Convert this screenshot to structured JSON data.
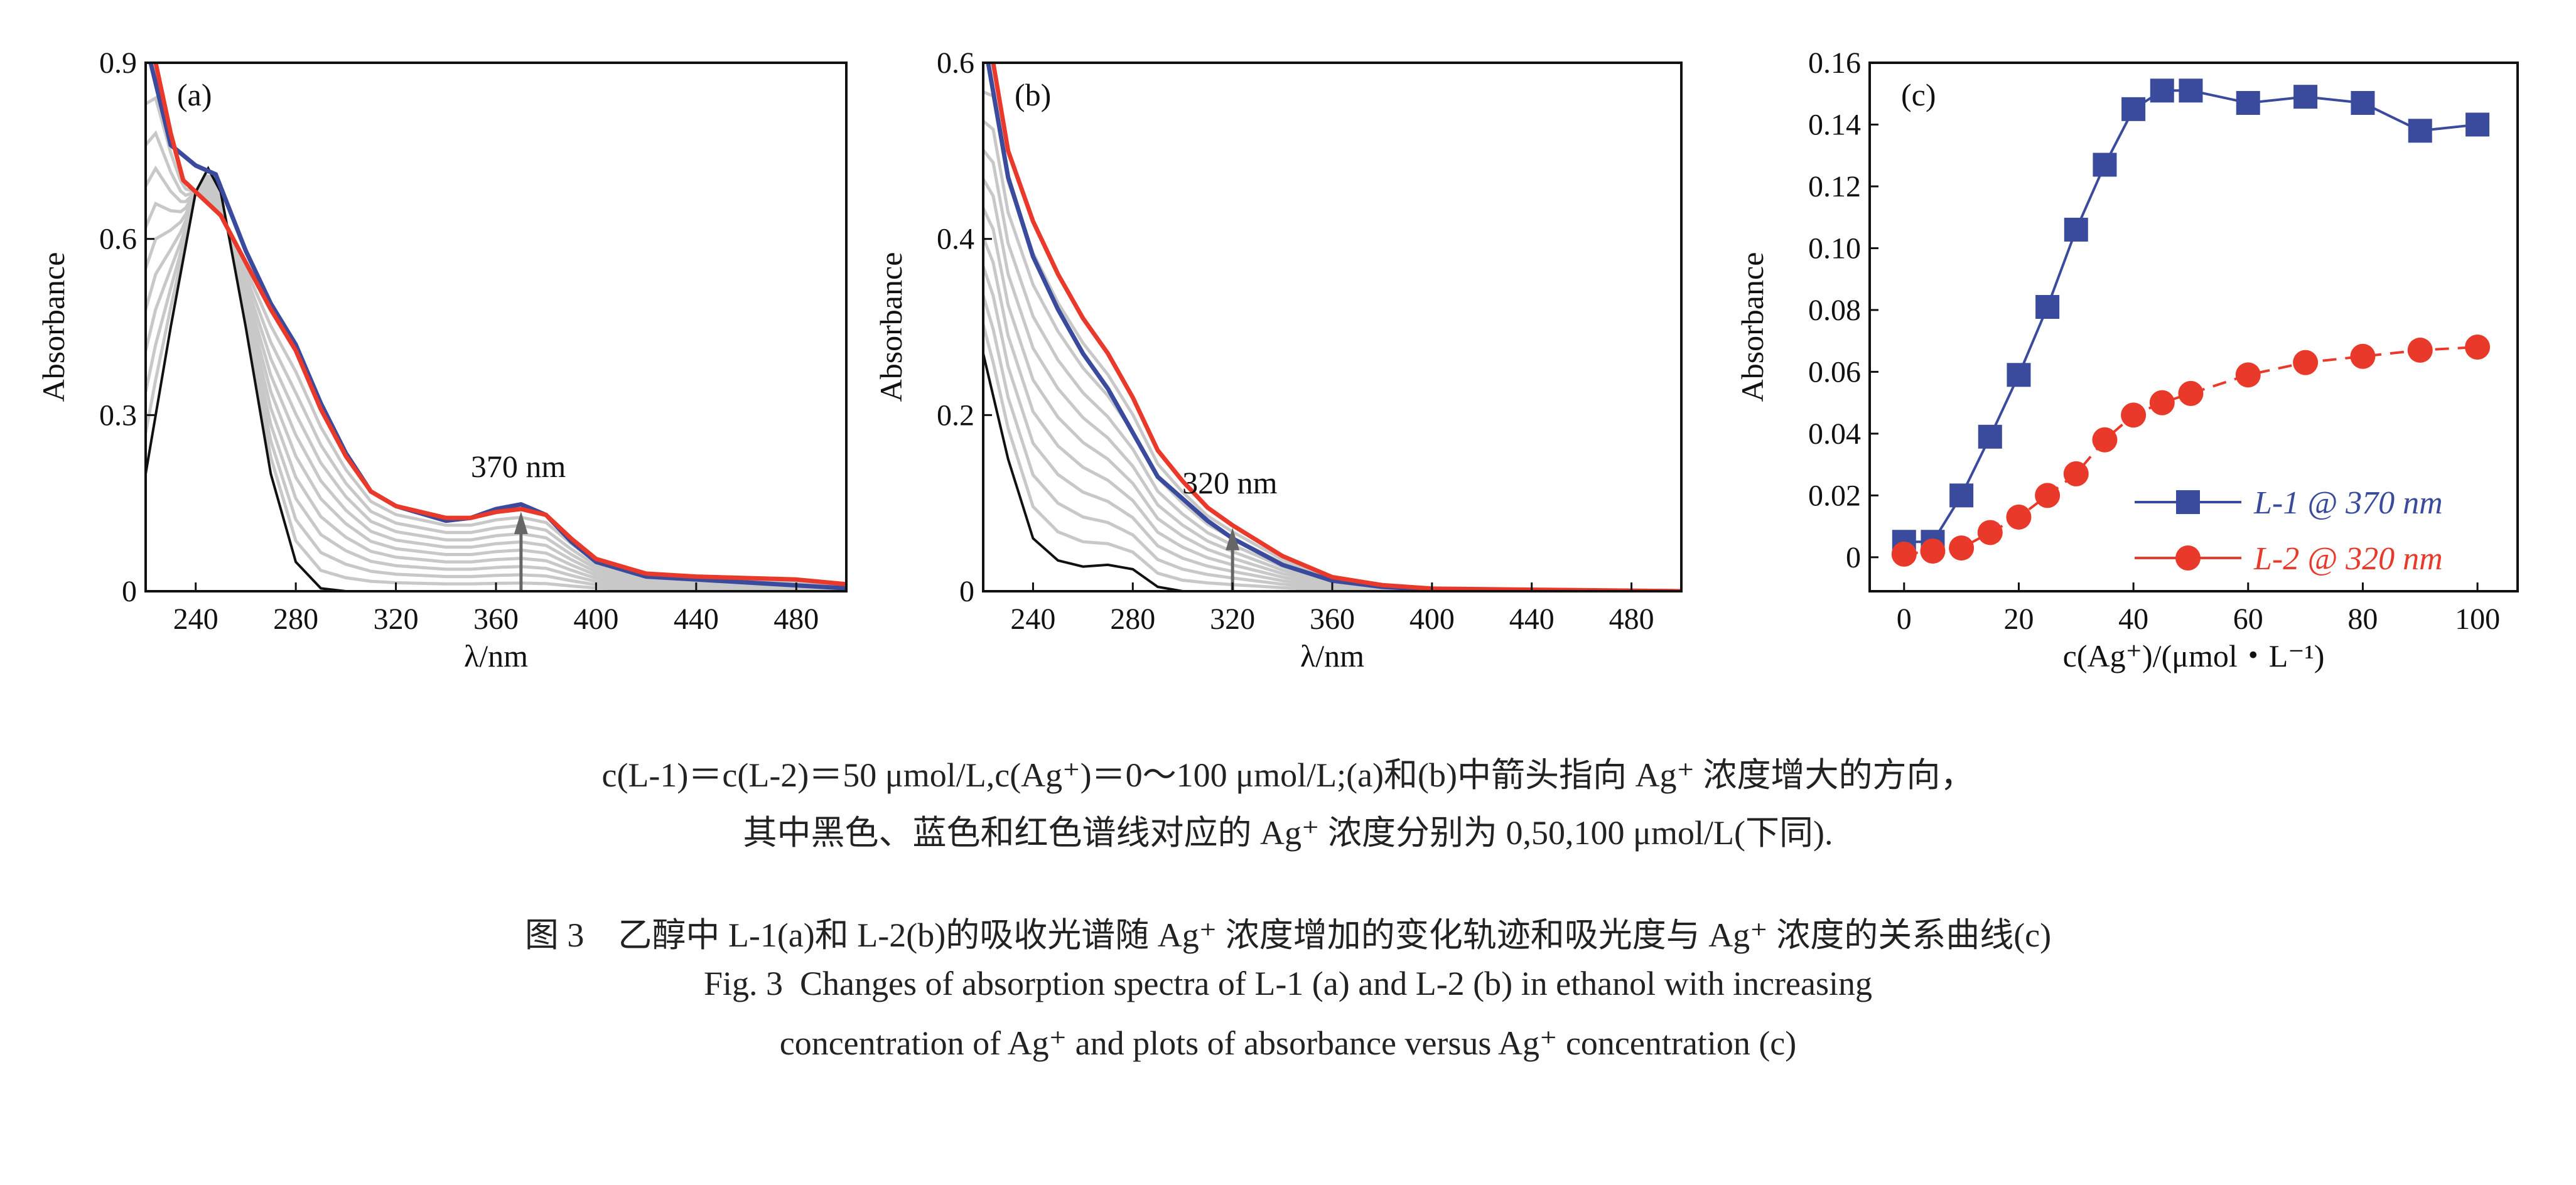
{
  "captions": {
    "note_line1": "c(L-1)＝c(L-2)＝50 μmol/L,c(Ag⁺)＝0～100 μmol/L;(a)和(b)中箭头指向 Ag⁺ 浓度增大的方向，",
    "note_line2": "其中黑色、蓝色和红色谱线对应的 Ag⁺ 浓度分别为 0,50,100 μmol/L(下同).",
    "title_cn": "图 3　乙醇中 L-1(a)和 L-2(b)的吸收光谱随 Ag⁺ 浓度增加的变化轨迹和吸光度与 Ag⁺ 浓度的关系曲线(c)",
    "title_en_line1": "Fig. 3  Changes of absorption spectra of L-1 (a) and L-2 (b) in ethanol with increasing",
    "title_en_line2": "concentration of Ag⁺ and plots of absorbance versus Ag⁺ concentration (c)"
  },
  "chart_data": [
    {
      "type": "line",
      "panel_label": "(a)",
      "xlabel": "λ/nm",
      "ylabel": "Absorbance",
      "xlim": [
        220,
        500
      ],
      "ylim": [
        0,
        0.9
      ],
      "xticks": [
        240,
        280,
        320,
        360,
        400,
        440,
        480
      ],
      "yticks": [
        0,
        0.3,
        0.6,
        0.9
      ],
      "ytick_labels": [
        "0",
        "0.3",
        "0.6",
        "0.9"
      ],
      "annotation": "370 nm",
      "arrow_at": 370,
      "grey_curve_count": 9,
      "colors": {
        "black": "#111111",
        "blue": "#3a4a9c",
        "red": "#e8392a",
        "grey": "#c8c8c8"
      },
      "series": [
        {
          "color": "black",
          "x": [
            220,
            230,
            240,
            245,
            250,
            260,
            270,
            280,
            290,
            300,
            500
          ],
          "y": [
            0.2,
            0.45,
            0.68,
            0.72,
            0.68,
            0.45,
            0.2,
            0.05,
            0.005,
            0,
            0
          ]
        },
        {
          "color": "blue",
          "x": [
            222,
            230,
            240,
            248,
            260,
            270,
            280,
            290,
            300,
            310,
            320,
            340,
            350,
            360,
            370,
            380,
            390,
            400,
            420,
            440,
            480,
            500
          ],
          "y": [
            0.9,
            0.76,
            0.725,
            0.71,
            0.58,
            0.49,
            0.42,
            0.32,
            0.235,
            0.17,
            0.145,
            0.12,
            0.125,
            0.14,
            0.148,
            0.13,
            0.085,
            0.05,
            0.025,
            0.02,
            0.01,
            0.005
          ]
        },
        {
          "color": "red",
          "x": [
            224,
            230,
            235,
            240,
            250,
            260,
            270,
            280,
            290,
            300,
            310,
            320,
            340,
            350,
            360,
            370,
            380,
            390,
            400,
            420,
            440,
            480,
            500
          ],
          "y": [
            0.9,
            0.78,
            0.7,
            0.68,
            0.64,
            0.56,
            0.48,
            0.41,
            0.31,
            0.23,
            0.17,
            0.145,
            0.125,
            0.125,
            0.135,
            0.14,
            0.13,
            0.09,
            0.055,
            0.03,
            0.025,
            0.02,
            0.012
          ]
        }
      ]
    },
    {
      "type": "line",
      "panel_label": "(b)",
      "xlabel": "λ/nm",
      "ylabel": "Absorbance",
      "xlim": [
        220,
        500
      ],
      "ylim": [
        0,
        0.6
      ],
      "xticks": [
        240,
        280,
        320,
        360,
        400,
        440,
        480
      ],
      "yticks": [
        0,
        0.2,
        0.4,
        0.6
      ],
      "ytick_labels": [
        "0",
        "0.2",
        "0.4",
        "0.6"
      ],
      "annotation": "320 nm",
      "arrow_at": 320,
      "grey_curve_count": 9,
      "colors": {
        "black": "#111111",
        "blue": "#3a4a9c",
        "red": "#e8392a",
        "grey": "#c8c8c8"
      },
      "series": [
        {
          "color": "black",
          "x": [
            220,
            230,
            240,
            250,
            260,
            270,
            280,
            290,
            300,
            500
          ],
          "y": [
            0.27,
            0.15,
            0.06,
            0.035,
            0.028,
            0.03,
            0.025,
            0.005,
            0,
            0
          ]
        },
        {
          "color": "blue",
          "x": [
            222,
            230,
            240,
            250,
            260,
            270,
            280,
            290,
            300,
            310,
            320,
            340,
            360,
            380,
            400,
            500
          ],
          "y": [
            0.6,
            0.47,
            0.38,
            0.32,
            0.27,
            0.23,
            0.18,
            0.13,
            0.105,
            0.08,
            0.06,
            0.03,
            0.012,
            0.005,
            0.002,
            0
          ]
        },
        {
          "color": "red",
          "x": [
            224,
            230,
            240,
            250,
            260,
            270,
            280,
            290,
            300,
            310,
            320,
            340,
            360,
            380,
            400,
            500
          ],
          "y": [
            0.6,
            0.5,
            0.42,
            0.36,
            0.31,
            0.27,
            0.22,
            0.16,
            0.125,
            0.095,
            0.075,
            0.04,
            0.016,
            0.007,
            0.003,
            0
          ]
        }
      ]
    },
    {
      "type": "scatter",
      "panel_label": "(c)",
      "xlabel": "c(Ag⁺)/(μmol・L⁻¹)",
      "ylabel": "Absorbance",
      "xlim": [
        -6,
        107
      ],
      "ylim": [
        -0.011,
        0.16
      ],
      "xticks": [
        0,
        20,
        40,
        60,
        80,
        100
      ],
      "yticks": [
        0,
        0.02,
        0.04,
        0.06,
        0.08,
        0.1,
        0.12,
        0.14,
        0.16
      ],
      "ytick_labels": [
        "0",
        "0.02",
        "0.04",
        "0.06",
        "0.08",
        "0.10",
        "0.12",
        "0.14",
        "0.16"
      ],
      "legend_position": "bottom-right",
      "x": [
        0,
        5,
        10,
        15,
        20,
        25,
        30,
        35,
        40,
        45,
        50,
        60,
        70,
        80,
        90,
        100
      ],
      "series": [
        {
          "name": "L-1 @ 370 nm",
          "marker": "square",
          "color": "#3a4a9c",
          "values": [
            0.005,
            0.005,
            0.02,
            0.039,
            0.059,
            0.081,
            0.106,
            0.127,
            0.145,
            0.151,
            0.151,
            0.147,
            0.149,
            0.147,
            0.138,
            0.14
          ]
        },
        {
          "name": "L-2 @ 320 nm",
          "marker": "circle",
          "color": "#e8392a",
          "values": [
            0.001,
            0.002,
            0.003,
            0.008,
            0.013,
            0.02,
            0.027,
            0.038,
            0.046,
            0.05,
            0.053,
            0.059,
            0.063,
            0.065,
            0.067,
            0.068
          ]
        }
      ]
    }
  ]
}
